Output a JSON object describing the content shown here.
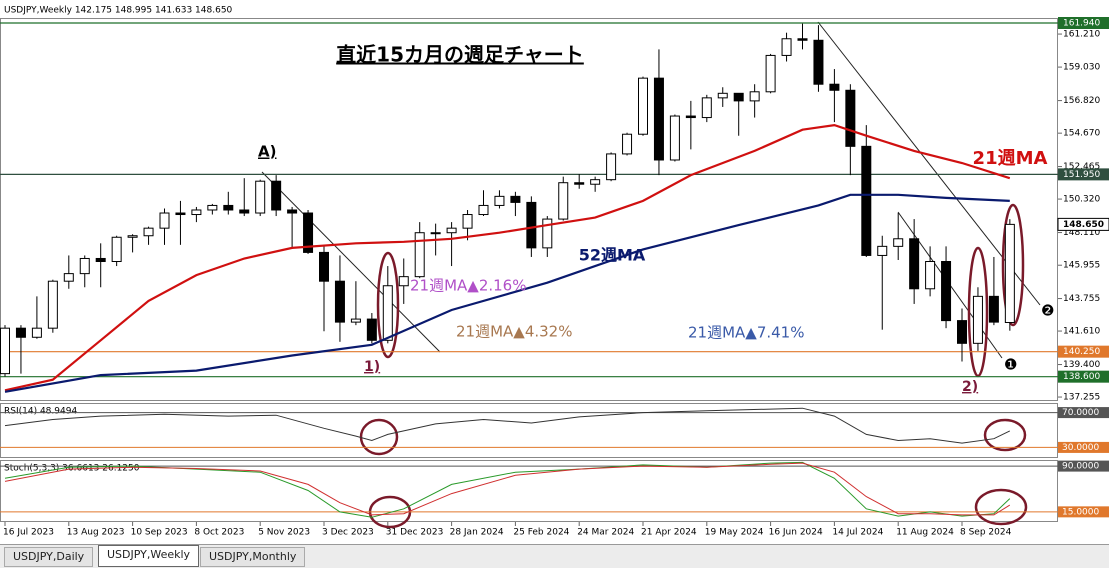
{
  "header": "USDJPY,Weekly  142.175 148.995 141.633 148.650",
  "chart_data": [
    {
      "type": "candlestick",
      "title": "直近15カ月の週足チャート",
      "categories": [
        "16 Jul 2023",
        null,
        null,
        null,
        "13 Aug 2023",
        null,
        null,
        null,
        "10 Sep 2023",
        null,
        null,
        null,
        "8 Oct 2023",
        null,
        null,
        null,
        "5 Nov 2023",
        null,
        null,
        null,
        "3 Dec 2023",
        null,
        null,
        null,
        "31 Dec 2023",
        null,
        null,
        null,
        "28 Jan 2024",
        null,
        null,
        null,
        "25 Feb 2024",
        null,
        null,
        null,
        "24 Mar 2024",
        null,
        null,
        null,
        "21 Apr 2024",
        null,
        null,
        null,
        "19 May 2024",
        null,
        null,
        null,
        "16 Jun 2024",
        null,
        null,
        null,
        "14 Jul 2024",
        null,
        null,
        null,
        "11 Aug 2024",
        null,
        null,
        null,
        "8 Sep 2024",
        null,
        null,
        null
      ],
      "open": [
        138.8,
        141.8,
        141.2,
        141.8,
        144.9,
        145.4,
        146.4,
        146.2,
        147.8,
        147.9,
        148.4,
        149.4,
        149.3,
        149.6,
        149.9,
        149.6,
        149.4,
        151.5,
        149.6,
        149.4,
        146.8,
        144.9,
        142.2,
        142.4,
        141.0,
        144.6,
        145.2,
        148.1,
        148.1,
        148.4,
        149.3,
        149.9,
        150.5,
        150.1,
        147.1,
        149.0,
        151.4,
        151.3,
        151.6,
        153.3,
        154.6,
        158.3,
        152.9,
        155.8,
        155.7,
        157.0,
        157.3,
        156.8,
        157.4,
        159.8,
        160.9,
        160.8,
        157.9,
        157.5,
        153.8,
        146.6,
        147.2,
        147.7,
        144.4,
        146.2,
        142.3,
        140.8,
        143.9,
        142.175
      ],
      "high": [
        142.0,
        142.0,
        143.9,
        145.0,
        146.6,
        146.6,
        147.4,
        147.9,
        148.0,
        148.5,
        149.7,
        150.2,
        149.8,
        150.0,
        150.8,
        151.7,
        151.6,
        151.9,
        149.8,
        149.6,
        147.3,
        146.6,
        144.9,
        142.8,
        145.9,
        146.4,
        148.8,
        148.7,
        148.8,
        149.6,
        150.9,
        150.9,
        150.8,
        150.5,
        149.2,
        151.8,
        151.97,
        151.8,
        153.4,
        154.7,
        158.4,
        160.2,
        155.9,
        156.8,
        157.2,
        157.7,
        157.3,
        157.9,
        159.9,
        161.3,
        161.9,
        161.8,
        158.9,
        157.9,
        155.2,
        147.9,
        149.4,
        149.0,
        147.2,
        147.2,
        143.1,
        144.5,
        146.5,
        148.995
      ],
      "low": [
        138.6,
        138.8,
        141.1,
        141.5,
        144.4,
        144.5,
        144.5,
        145.9,
        146.8,
        147.3,
        147.3,
        147.3,
        148.8,
        149.3,
        149.3,
        149.2,
        149.2,
        149.2,
        147.1,
        146.7,
        141.6,
        140.9,
        142.0,
        140.8,
        140.8,
        143.4,
        145.1,
        146.6,
        145.9,
        147.6,
        149.2,
        149.7,
        149.2,
        146.5,
        146.5,
        148.9,
        151.0,
        150.8,
        151.5,
        153.2,
        154.5,
        151.9,
        152.8,
        153.6,
        155.4,
        156.4,
        154.5,
        155.7,
        157.3,
        159.4,
        160.2,
        157.4,
        155.4,
        151.9,
        146.5,
        141.7,
        146.3,
        143.4,
        143.9,
        141.8,
        139.6,
        140.3,
        142.0,
        141.633
      ],
      "close": [
        141.8,
        141.2,
        141.8,
        144.9,
        145.4,
        146.4,
        146.2,
        147.8,
        147.9,
        148.4,
        149.4,
        149.3,
        149.6,
        149.9,
        149.6,
        149.4,
        151.5,
        149.6,
        149.4,
        146.8,
        144.9,
        142.2,
        142.4,
        141.0,
        144.6,
        145.2,
        148.1,
        148.1,
        148.4,
        149.3,
        149.9,
        150.5,
        150.1,
        147.1,
        149.0,
        151.4,
        151.3,
        151.6,
        153.3,
        154.6,
        158.3,
        152.9,
        155.8,
        155.7,
        157.0,
        157.3,
        156.8,
        157.4,
        159.8,
        160.9,
        160.8,
        157.9,
        157.5,
        153.8,
        146.6,
        147.2,
        147.7,
        144.4,
        146.2,
        142.3,
        140.8,
        143.9,
        142.2,
        148.65
      ],
      "up_color": "#ffffff",
      "down_color": "#000000",
      "series": [
        {
          "name": "21週MA",
          "color": "#d01010",
          "x": [
            0,
            3,
            6,
            9,
            12,
            15,
            18,
            22,
            25,
            28,
            31,
            34,
            37,
            40,
            43,
            47,
            50,
            52,
            54,
            57,
            60,
            63
          ],
          "values": [
            137.7,
            138.4,
            141.0,
            143.6,
            145.3,
            146.4,
            147.1,
            147.4,
            147.5,
            147.7,
            148.1,
            148.6,
            149.1,
            150.2,
            151.9,
            153.5,
            154.9,
            155.2,
            154.5,
            153.5,
            152.7,
            151.7
          ]
        },
        {
          "name": "52週MA",
          "color": "#0a1a6e",
          "x": [
            0,
            6,
            12,
            18,
            23,
            28,
            34,
            40,
            46,
            51,
            53,
            56,
            59,
            63
          ],
          "values": [
            137.6,
            138.7,
            139.0,
            140.0,
            140.7,
            143.0,
            144.8,
            147.0,
            148.6,
            149.9,
            150.6,
            150.6,
            150.4,
            150.2
          ]
        }
      ],
      "ylim": [
        137.06,
        162.27
      ],
      "yticks": [
        {
          "value": 161.21,
          "label": "161.210"
        },
        {
          "value": 159.03,
          "label": "159.030"
        },
        {
          "value": 156.82,
          "label": "156.820"
        },
        {
          "value": 154.67,
          "label": "154.670"
        },
        {
          "value": 152.465,
          "label": "152.465"
        },
        {
          "value": 150.32,
          "label": "150.320"
        },
        {
          "value": 148.11,
          "label": "148.110"
        },
        {
          "value": 145.955,
          "label": "145.955"
        },
        {
          "value": 143.755,
          "label": "143.755"
        },
        {
          "value": 141.61,
          "label": "141.610"
        },
        {
          "value": 139.4,
          "label": "139.400"
        },
        {
          "value": 137.255,
          "label": "137.255"
        }
      ],
      "levels": [
        {
          "value": 161.94,
          "label": "161.940",
          "color": "#1f6f2a"
        },
        {
          "value": 151.95,
          "label": "151.950",
          "color": "#2f4f3f"
        },
        {
          "value": 140.25,
          "label": "140.250",
          "color": "#e0782c"
        },
        {
          "value": 138.6,
          "label": "138.600",
          "color": "#1f6f2a"
        }
      ],
      "current": {
        "value": 148.65,
        "label": "148.650"
      },
      "annotations": [
        {
          "text": "A)",
          "color": "#000000"
        },
        {
          "text": "1)",
          "color": "#7a1a3a"
        },
        {
          "text": "2)",
          "color": "#7a1a3a"
        },
        {
          "text": "21週MA▲2.16%",
          "color": "#b050c8"
        },
        {
          "text": "21週MA▲4.32%",
          "color": "#a87850"
        },
        {
          "text": "21週MA▲7.41%",
          "color": "#3a5aa8"
        },
        {
          "text": "❶",
          "color": "#000000"
        },
        {
          "text": "❷",
          "color": "#000000"
        }
      ]
    },
    {
      "type": "line",
      "title": "RSI(14) 48.9494",
      "series": [
        {
          "color": "#333333",
          "x": [
            0,
            3,
            6,
            10,
            14,
            17,
            20,
            22,
            23,
            24,
            27,
            30,
            33,
            36,
            40,
            44,
            48,
            50,
            52,
            54,
            56,
            58,
            60,
            62,
            63
          ],
          "values": [
            55,
            62,
            66,
            68,
            66,
            67,
            52,
            43,
            38,
            45,
            57,
            62,
            58,
            65,
            70,
            72,
            74,
            75,
            66,
            45,
            38,
            40,
            35,
            40,
            49
          ]
        }
      ],
      "ylim": [
        19,
        81
      ],
      "yticks": [
        {
          "value": 70,
          "label": "70.0000"
        },
        {
          "value": 30,
          "label": "30.0000"
        }
      ],
      "level_colors": [
        "#555555",
        "#e0782c"
      ]
    },
    {
      "type": "line",
      "title": "Stoch(5,3,3) 36.6613 26.1250",
      "series": [
        {
          "color": "#2a9a2a",
          "x": [
            0,
            4,
            8,
            12,
            16,
            19,
            21,
            23,
            25,
            28,
            32,
            36,
            40,
            44,
            48,
            50,
            52,
            54,
            56,
            58,
            60,
            62,
            63
          ],
          "values": [
            70,
            88,
            90,
            85,
            80,
            50,
            15,
            6,
            20,
            60,
            80,
            85,
            92,
            88,
            95,
            96,
            70,
            20,
            8,
            15,
            8,
            12,
            36.6613
          ]
        },
        {
          "color": "#d03030",
          "x": [
            0,
            4,
            8,
            12,
            16,
            19,
            21,
            23,
            25,
            28,
            32,
            36,
            40,
            44,
            48,
            50,
            52,
            54,
            56,
            58,
            60,
            62,
            63
          ],
          "values": [
            65,
            85,
            88,
            86,
            82,
            60,
            30,
            10,
            12,
            45,
            75,
            85,
            90,
            88,
            93,
            95,
            80,
            40,
            12,
            12,
            10,
            10,
            26.125
          ]
        }
      ],
      "ylim": [
        0,
        100
      ],
      "yticks": [
        {
          "value": 90,
          "label": "90.0000"
        },
        {
          "value": 15,
          "label": "15.0000"
        }
      ],
      "level_colors": [
        "#555555",
        "#e0782c"
      ]
    }
  ],
  "tabs": [
    "USDJPY,Daily",
    "USDJPY,Weekly",
    "USDJPY,Monthly"
  ]
}
